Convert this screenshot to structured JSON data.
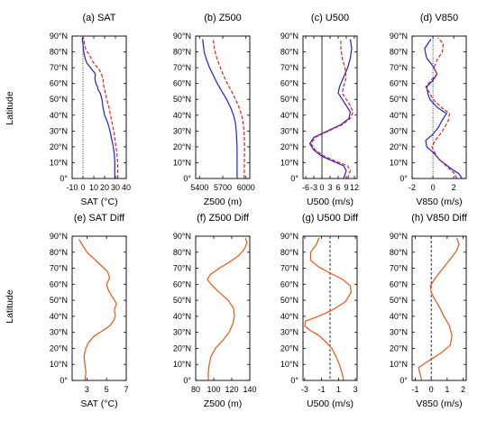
{
  "figure": {
    "ylabel": "Latitude"
  },
  "colors": {
    "series_a": "#1f1fe0",
    "series_b": "#e52222",
    "diff": "#ee5511",
    "zero_line": "#000000"
  },
  "lat_ticks": [
    "0°",
    "10°N",
    "20°N",
    "30°N",
    "40°N",
    "50°N",
    "60°N",
    "70°N",
    "80°N",
    "90°N"
  ],
  "chart_data": [
    {
      "id": "a",
      "type": "line",
      "title": "(a) SAT",
      "xlabel": "SAT (°C)",
      "xlim": [
        -10,
        40
      ],
      "ylim": [
        0,
        90
      ],
      "xticks": [
        -10,
        0,
        10,
        20,
        30,
        40
      ],
      "xtick_labels": [
        "-10",
        "0",
        "10",
        "20",
        "30",
        "40"
      ],
      "ref_line": 0,
      "ref_style": "dotted",
      "dual": true,
      "series": [
        {
          "style": "solid",
          "x": [
            29.5,
            29.3,
            29.5,
            29,
            28,
            26.5,
            25,
            23,
            20,
            18.5,
            17.5,
            16,
            14,
            13.5,
            12,
            11,
            11.5,
            7,
            3.5,
            2,
            1,
            0.3,
            0,
            -0.5,
            -0.5
          ],
          "y": [
            0,
            5,
            10,
            15,
            20,
            25,
            30,
            35,
            40,
            45,
            50,
            54,
            56,
            58,
            60,
            63,
            66,
            70,
            73,
            76,
            79,
            82,
            85,
            87,
            89
          ]
        },
        {
          "style": "dashed",
          "x": [
            32,
            32.2,
            32,
            31.5,
            30.5,
            29.5,
            28.5,
            27,
            25.5,
            24,
            22,
            21,
            20,
            19,
            18.5,
            17,
            15,
            11,
            8,
            6,
            3,
            1.5,
            1,
            0.5
          ],
          "y": [
            0,
            5,
            10,
            15,
            20,
            25,
            30,
            35,
            40,
            45,
            50,
            53,
            56,
            59,
            63,
            66,
            69,
            72,
            75,
            78,
            81,
            84,
            87,
            89
          ]
        }
      ]
    },
    {
      "id": "b",
      "type": "line",
      "title": "(b) Z500",
      "xlabel": "Z500 (m)",
      "xlim": [
        5350,
        6050
      ],
      "ylim": [
        0,
        90
      ],
      "xticks": [
        5400,
        5700,
        6000
      ],
      "xtick_labels": [
        "5400",
        "5700",
        "6000"
      ],
      "dual": true,
      "series": [
        {
          "style": "solid",
          "x": [
            5885,
            5885,
            5885,
            5880,
            5875,
            5865,
            5840,
            5800,
            5750,
            5690,
            5630,
            5580,
            5530,
            5490,
            5460,
            5440
          ],
          "y": [
            0,
            10,
            20,
            25,
            30,
            35,
            40,
            45,
            50,
            55,
            60,
            65,
            70,
            75,
            80,
            88
          ]
        },
        {
          "style": "dashed",
          "x": [
            5978,
            5980,
            5982,
            5980,
            5975,
            5965,
            5945,
            5910,
            5865,
            5815,
            5760,
            5710,
            5670,
            5630,
            5600,
            5575
          ],
          "y": [
            0,
            10,
            20,
            25,
            30,
            35,
            40,
            45,
            50,
            55,
            60,
            65,
            70,
            75,
            80,
            88
          ]
        }
      ]
    },
    {
      "id": "c",
      "type": "line",
      "title": "(c) U500",
      "xlabel": "U500 (m/s)",
      "xlim": [
        -7,
        13
      ],
      "ylim": [
        0,
        90
      ],
      "xticks": [
        -6,
        -3,
        0,
        3,
        6,
        9,
        12
      ],
      "xtick_labels": [
        "-6",
        "-3",
        "0",
        "3",
        "6",
        "9",
        "12"
      ],
      "ref_line": 0,
      "ref_style": "solid",
      "dual": true,
      "series": [
        {
          "style": "solid",
          "x": [
            8,
            9,
            8,
            4,
            0,
            -3,
            -4.5,
            -3,
            2,
            7,
            10,
            10.5,
            9,
            7.5,
            6,
            6.5,
            8,
            9.5,
            10.5,
            11,
            10.5
          ],
          "y": [
            0,
            5,
            8,
            11,
            14,
            18,
            22,
            26,
            30,
            34,
            38,
            42,
            46,
            50,
            54,
            58,
            64,
            70,
            76,
            82,
            88
          ]
        },
        {
          "style": "dashed",
          "x": [
            9.5,
            10.5,
            9.5,
            5,
            1,
            -2.5,
            -4,
            -2.5,
            2.5,
            7.5,
            10.5,
            11.5,
            10.5,
            9,
            7.5,
            8,
            9,
            8.5,
            7.5,
            7,
            7
          ],
          "y": [
            0,
            5,
            8,
            11,
            14,
            18,
            22,
            26,
            30,
            34,
            38,
            42,
            46,
            50,
            54,
            58,
            64,
            70,
            76,
            82,
            88
          ]
        }
      ]
    },
    {
      "id": "d",
      "type": "line",
      "title": "(d) V850",
      "xlabel": "V850 (m/s)",
      "xlim": [
        -2,
        3.2
      ],
      "ylim": [
        0,
        90
      ],
      "xticks": [
        -2,
        0,
        2
      ],
      "xtick_labels": [
        "-2",
        "0",
        "2"
      ],
      "ref_line": 0,
      "ref_style": "dotted",
      "dual": true,
      "series": [
        {
          "style": "solid",
          "x": [
            2.8,
            2.5,
            1.8,
            1.2,
            0.6,
            0.1,
            -0.6,
            -0.7,
            0,
            0.5,
            0.9,
            1.3,
            0.4,
            -0.3,
            -0.5,
            -0.6,
            0,
            0.4,
            0,
            -0.6,
            -0.8,
            -0.2
          ],
          "y": [
            0,
            3,
            6,
            9,
            12,
            16,
            20,
            24,
            28,
            32,
            37,
            41,
            45,
            50,
            54,
            58,
            62,
            66,
            71,
            76,
            82,
            88
          ]
        },
        {
          "style": "dashed",
          "x": [
            2.3,
            2.1,
            1.6,
            1.1,
            0.6,
            0.2,
            -0.1,
            0.2,
            0.7,
            1.1,
            1.5,
            1.6,
            0.8,
            0,
            -0.3,
            -0.7,
            -0.2,
            0.4,
            0.1,
            0.4,
            0.9,
            1,
            0.5
          ],
          "y": [
            0,
            3,
            6,
            9,
            12,
            16,
            20,
            24,
            28,
            32,
            37,
            41,
            45,
            50,
            54,
            58,
            62,
            66,
            70,
            75,
            80,
            85,
            89
          ]
        }
      ]
    },
    {
      "id": "e",
      "type": "line",
      "title": "(e) SAT Diff",
      "xlabel": "SAT (°C)",
      "xlim": [
        1.5,
        7
      ],
      "ylim": [
        0,
        90
      ],
      "xticks": [
        3,
        5,
        7
      ],
      "xtick_labels": [
        "3",
        "5",
        "7"
      ],
      "dual": false,
      "series": [
        {
          "style": "solid",
          "x": [
            2.8,
            2.9,
            2.8,
            2.7,
            2.9,
            3.2,
            3.8,
            4.6,
            5.3,
            5.7,
            5.9,
            5.8,
            6.0,
            5.6,
            5.2,
            5.0,
            5.3,
            5.1,
            4.4,
            3.7,
            3.0,
            2.6,
            2.2
          ],
          "y": [
            0,
            5,
            10,
            15,
            20,
            24,
            28,
            31,
            34,
            37,
            40,
            44,
            48,
            52,
            56,
            60,
            64,
            68,
            72,
            76,
            80,
            84,
            88
          ]
        }
      ]
    },
    {
      "id": "f",
      "type": "line",
      "title": "(f) Z500 Diff",
      "xlabel": "Z500 (m)",
      "xlim": [
        80,
        140
      ],
      "ylim": [
        0,
        90
      ],
      "xticks": [
        80,
        100,
        120,
        140
      ],
      "xtick_labels": [
        "80",
        "100",
        "120",
        "140"
      ],
      "dual": false,
      "series": [
        {
          "style": "solid",
          "x": [
            94,
            94,
            95,
            97,
            102,
            110,
            117,
            121,
            123,
            122,
            116,
            106,
            97,
            93,
            96,
            106,
            118,
            128,
            134,
            137,
            135
          ],
          "y": [
            0,
            5,
            10,
            15,
            20,
            25,
            30,
            35,
            40,
            45,
            50,
            55,
            60,
            63,
            66,
            70,
            74,
            78,
            82,
            86,
            89
          ]
        }
      ]
    },
    {
      "id": "g",
      "type": "line",
      "title": "(g) U500 Diff",
      "xlabel": "U500 (m/s)",
      "xlim": [
        -3.2,
        3.2
      ],
      "ylim": [
        0,
        90
      ],
      "xticks": [
        -3,
        -1,
        1,
        3
      ],
      "xtick_labels": [
        "-3",
        "-1",
        "1",
        "3"
      ],
      "ref_line": 0,
      "ref_style": "dashed",
      "dual": false,
      "series": [
        {
          "style": "solid",
          "x": [
            1.6,
            1.4,
            1.1,
            0.7,
            0.2,
            -0.5,
            -1.3,
            -2.3,
            -3,
            -2.9,
            -1.4,
            0.3,
            1.8,
            2.5,
            2.4,
            1.5,
            0,
            -1.4,
            -2.3,
            -2.3,
            -1.6,
            -1.3
          ],
          "y": [
            0,
            5,
            10,
            15,
            20,
            24,
            28,
            31,
            34,
            37,
            40,
            44,
            49,
            55,
            59,
            63,
            67,
            71,
            75,
            80,
            85,
            89
          ]
        }
      ]
    },
    {
      "id": "h",
      "type": "line",
      "title": "(h) V850 Diff",
      "xlabel": "V850 (m/s)",
      "xlim": [
        -1.2,
        2.2
      ],
      "ylim": [
        0,
        90
      ],
      "xticks": [
        -1,
        0,
        1,
        2
      ],
      "xtick_labels": [
        "-1",
        "0",
        "1",
        "2"
      ],
      "ref_line": 0,
      "ref_style": "dashed",
      "dual": false,
      "series": [
        {
          "style": "solid",
          "x": [
            -0.6,
            -0.7,
            -0.8,
            -0.2,
            0.6,
            1.2,
            1.3,
            1.15,
            0.8,
            0.5,
            0.2,
            0,
            -0.05,
            0.2,
            0.5,
            0.9,
            1.3,
            1.6,
            1.75,
            1.6
          ],
          "y": [
            0,
            4,
            8,
            12,
            17,
            22,
            28,
            34,
            40,
            46,
            51,
            55,
            59,
            63,
            67,
            72,
            77,
            81,
            85,
            89
          ]
        }
      ]
    }
  ]
}
